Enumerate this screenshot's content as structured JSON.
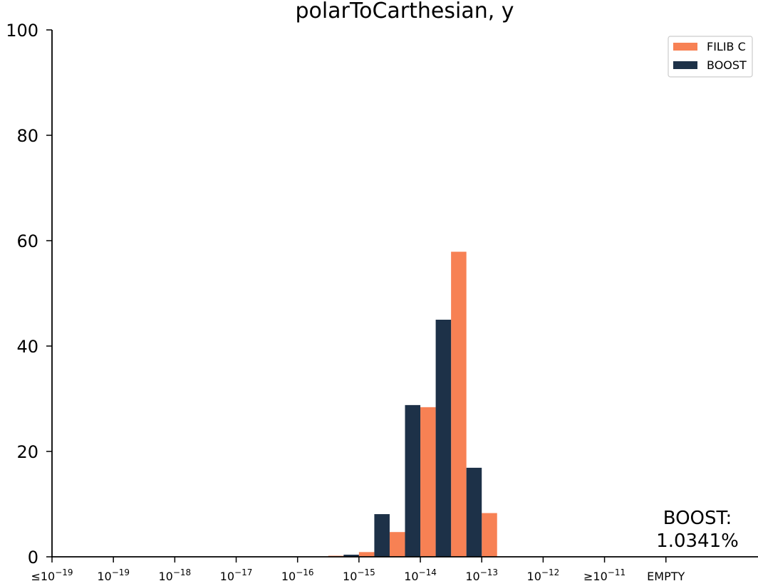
{
  "chart_data": {
    "type": "bar",
    "title": "polarToCarthesian, y",
    "xlabel": "",
    "ylabel": "",
    "ylim": [
      0,
      100
    ],
    "yticks": [
      0,
      20,
      40,
      60,
      80,
      100
    ],
    "grid": false,
    "legend_position": "top-right",
    "x_tick_labels": [
      {
        "prefix": "≤",
        "base": "10",
        "exp": "−19"
      },
      {
        "prefix": "",
        "base": "10",
        "exp": "−19"
      },
      {
        "prefix": "",
        "base": "10",
        "exp": "−18"
      },
      {
        "prefix": "",
        "base": "10",
        "exp": "−17"
      },
      {
        "prefix": "",
        "base": "10",
        "exp": "−16"
      },
      {
        "prefix": "",
        "base": "10",
        "exp": "−15"
      },
      {
        "prefix": "",
        "base": "10",
        "exp": "−14"
      },
      {
        "prefix": "",
        "base": "10",
        "exp": "−13"
      },
      {
        "prefix": "",
        "base": "10",
        "exp": "−12"
      },
      {
        "prefix": "≥",
        "base": "10",
        "exp": "−11"
      },
      {
        "prefix": "EMPTY",
        "base": "",
        "exp": ""
      }
    ],
    "bin_start": [
      0,
      0.5,
      1,
      1.5,
      2,
      2.5,
      3,
      3.5,
      4,
      4.5,
      5,
      5.5,
      6,
      6.5,
      7,
      7.5,
      8,
      8.5,
      9,
      9.5,
      10,
      10.5,
      11,
      11.5
    ],
    "series": [
      {
        "name": "FILIB C",
        "color": "#f78154",
        "values": [
          0,
          0,
          0,
          0,
          0,
          0,
          0,
          0,
          0,
          0.2,
          0.9,
          4.7,
          28.4,
          57.9,
          8.3,
          0,
          0,
          0,
          0,
          0,
          0,
          0,
          0,
          0
        ]
      },
      {
        "name": "BOOST",
        "color": "#1d3148",
        "values": [
          0,
          0,
          0,
          0,
          0,
          0,
          0,
          0,
          0,
          0.4,
          8.1,
          28.8,
          45.0,
          16.9,
          0,
          0,
          0,
          0,
          0,
          0,
          0,
          0,
          0,
          1.0341
        ]
      }
    ],
    "annotation": {
      "line1": "BOOST:",
      "line2": "1.0341%"
    }
  }
}
